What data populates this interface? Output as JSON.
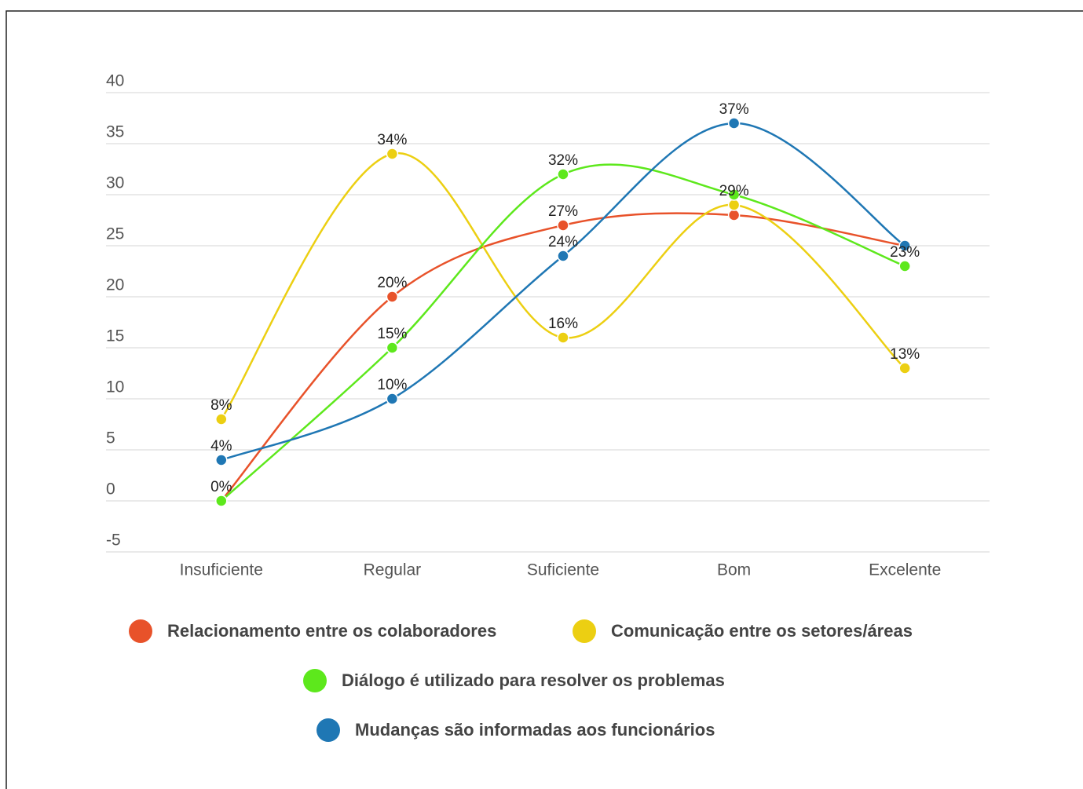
{
  "chart_data": {
    "type": "line",
    "categories": [
      "Insuficiente",
      "Regular",
      "Suficiente",
      "Bom",
      "Excelente"
    ],
    "ylim": [
      -5,
      40
    ],
    "yticks": [
      -5,
      0,
      5,
      10,
      15,
      20,
      25,
      30,
      35,
      40
    ],
    "grid": true,
    "smooth": true,
    "legend": "bottom",
    "series": [
      {
        "name": "Relacionamento entre os colaboradores",
        "color": "#e8522a",
        "values": [
          0,
          20,
          27,
          28,
          25
        ],
        "value_labels": [
          null,
          "20%",
          "27%",
          null,
          null
        ]
      },
      {
        "name": "Comunicação entre os setores/áreas",
        "color": "#eccf12",
        "values": [
          8,
          34,
          16,
          29,
          13
        ],
        "value_labels": [
          "8%",
          "34%",
          "16%",
          "29%",
          "13%"
        ]
      },
      {
        "name": "Diálogo é utilizado para resolver os problemas",
        "color": "#5de81c",
        "values": [
          0,
          15,
          32,
          30,
          23
        ],
        "value_labels": [
          "0%",
          "15%",
          "32%",
          null,
          "23%"
        ]
      },
      {
        "name": "Mudanças são informadas aos funcionários",
        "color": "#1f77b4",
        "values": [
          4,
          10,
          24,
          37,
          25
        ],
        "value_labels": [
          "4%",
          "10%",
          "24%",
          "37%",
          null
        ]
      }
    ]
  }
}
